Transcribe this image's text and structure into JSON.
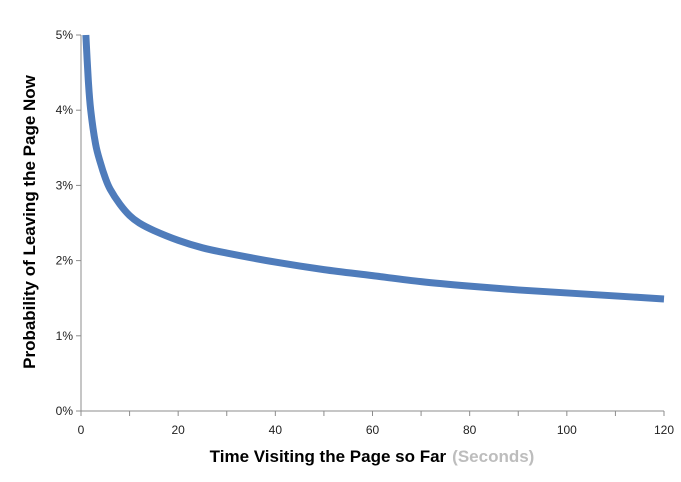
{
  "chart_data": {
    "type": "line",
    "title": "",
    "xlabel": "Time Visiting the Page so Far",
    "xlabel_unit": "(Seconds)",
    "ylabel": "Probability of Leaving  the Page Now",
    "xlim": [
      0,
      120
    ],
    "ylim": [
      0,
      5
    ],
    "x_ticks": [
      0,
      20,
      40,
      60,
      80,
      100,
      120
    ],
    "x_tick_labels": [
      "0",
      "20",
      "40",
      "60",
      "80",
      "100",
      "120"
    ],
    "y_ticks": [
      0,
      1,
      2,
      3,
      4,
      5
    ],
    "y_tick_labels": [
      "0%",
      "1%",
      "2%",
      "3%",
      "4%",
      "5%"
    ],
    "grid": false,
    "legend": "none",
    "series": [
      {
        "color": "#4f7cbb",
        "x": [
          1,
          1.5,
          2,
          3,
          4,
          5,
          6,
          8,
          10,
          12,
          15,
          20,
          25,
          30,
          40,
          50,
          60,
          70,
          80,
          90,
          100,
          110,
          120
        ],
        "y": [
          5.0,
          4.4,
          4.0,
          3.55,
          3.3,
          3.1,
          2.95,
          2.75,
          2.6,
          2.5,
          2.4,
          2.27,
          2.17,
          2.1,
          1.98,
          1.88,
          1.8,
          1.72,
          1.66,
          1.61,
          1.57,
          1.53,
          1.49
        ]
      }
    ]
  }
}
